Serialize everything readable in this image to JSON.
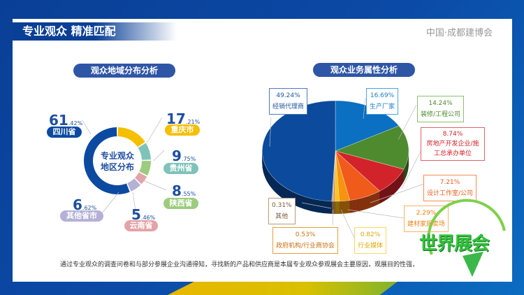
{
  "header": {
    "title": "专业观众 精准匹配",
    "brand": "中国·成都建博会"
  },
  "left": {
    "title": "观众地域分布分析",
    "center_text": [
      "专业观众",
      "地区分布"
    ]
  },
  "right": {
    "title": "观众业务属性分析"
  },
  "footer": "通过专业观众的调查问卷和与部分参展企业沟通得知，寻找新的产品和供应商是本届专业观众参观展会主要原因，观展目的性强，",
  "logo_text": "世界展会",
  "chart_data": [
    {
      "type": "pie",
      "variant": "donut",
      "title": "专业观众地区分布",
      "categories": [
        "重庆市",
        "贵州省",
        "陕西省",
        "云南省",
        "其他省市",
        "四川省"
      ],
      "values": [
        17.21,
        9.75,
        8.55,
        5.46,
        6.62,
        61.42
      ],
      "int_labels": [
        "17",
        "9",
        "8",
        "5",
        "6",
        "61"
      ],
      "dec_labels": [
        ".21%",
        ".75%",
        ".55%",
        ".46%",
        ".62%",
        ".42%"
      ],
      "colors": [
        "#f6bf00",
        "#7fc3b8",
        "#9ccc7e",
        "#e3a3a8",
        "#b4b0d6",
        "#0b4aa0"
      ]
    },
    {
      "type": "pie",
      "variant": "3d",
      "title": "观众业务属性分析",
      "categories": [
        "生产厂家",
        "装修/工程公司",
        "房地产开发企业/施工总承办单位",
        "设计工作室/公司",
        "建材家居卖场",
        "行业媒体",
        "政府机构/行业商协会",
        "其他",
        "经销代理商"
      ],
      "values": [
        16.69,
        14.24,
        8.74,
        7.21,
        2.29,
        0.82,
        0.53,
        0.31,
        49.24
      ],
      "value_labels": [
        "16.69%",
        "14.24%",
        "8.74%",
        "7.21%",
        "2.29%",
        "0.82%",
        "0.53%",
        "0.31%",
        "49.24%"
      ],
      "colors": [
        "#0b6fc2",
        "#4e8a2e",
        "#d2232a",
        "#f05a1a",
        "#f7930f",
        "#f9c414",
        "#e8a03a",
        "#b79a7a",
        "#0b4a9c"
      ]
    }
  ]
}
